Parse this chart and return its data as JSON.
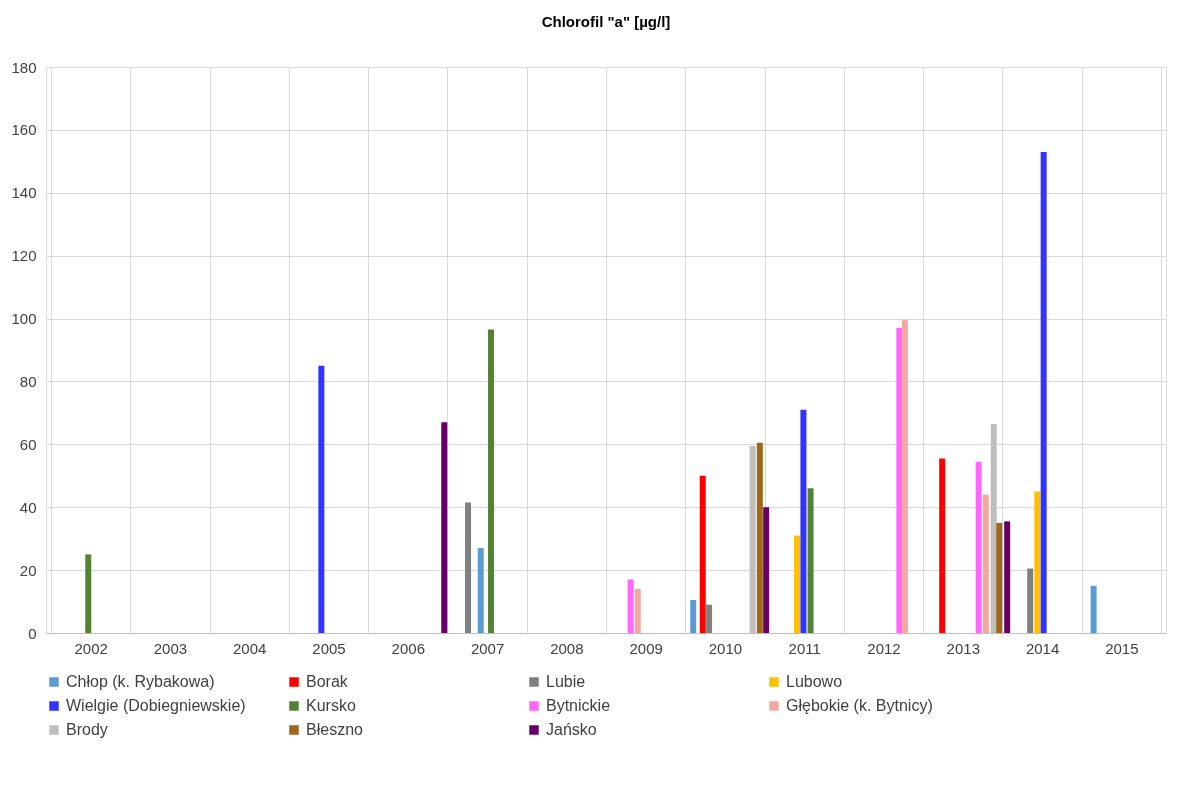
{
  "chart_data": {
    "type": "bar",
    "title": "Chlorofil \"a\" [µg/l]",
    "xlim": [
      2002,
      2016
    ],
    "ylim": [
      0,
      180
    ],
    "xticks": [
      {
        "value": 2002,
        "label": null
      },
      {
        "value": 2002.5,
        "label": "2002"
      },
      {
        "value": 2003,
        "label": null
      },
      {
        "value": 2003.5,
        "label": "2003"
      },
      {
        "value": 2004,
        "label": null
      },
      {
        "value": 2004.5,
        "label": "2004"
      },
      {
        "value": 2005,
        "label": null
      },
      {
        "value": 2005.5,
        "label": "2005"
      },
      {
        "value": 2006,
        "label": null
      },
      {
        "value": 2006.5,
        "label": "2006"
      },
      {
        "value": 2007,
        "label": null
      },
      {
        "value": 2007.5,
        "label": "2007"
      },
      {
        "value": 2008,
        "label": null
      },
      {
        "value": 2008.5,
        "label": "2008"
      },
      {
        "value": 2009,
        "label": null
      },
      {
        "value": 2009.5,
        "label": "2009"
      },
      {
        "value": 2010,
        "label": null
      },
      {
        "value": 2010.5,
        "label": "2010"
      },
      {
        "value": 2011,
        "label": null
      },
      {
        "value": 2011.5,
        "label": "2011"
      },
      {
        "value": 2012,
        "label": null
      },
      {
        "value": 2012.5,
        "label": "2012"
      },
      {
        "value": 2013,
        "label": null
      },
      {
        "value": 2013.5,
        "label": "2013"
      },
      {
        "value": 2014,
        "label": null
      },
      {
        "value": 2014.5,
        "label": "2014"
      },
      {
        "value": 2015,
        "label": null
      },
      {
        "value": 2015.5,
        "label": "2015"
      },
      {
        "value": 2016,
        "label": null
      }
    ],
    "yticks": [
      0,
      20,
      40,
      60,
      80,
      100,
      120,
      140,
      160,
      180
    ],
    "grid": true,
    "legend": "bottom",
    "series": [
      {
        "name": "Chłop (k. Rybakowa)",
        "color": "#5b9bd5",
        "x": [
          2007.42,
          2010.1,
          2015.15
        ],
        "values": [
          27,
          10.5,
          15
        ]
      },
      {
        "name": "Borak",
        "color": "#ff0000",
        "x": [
          2010.22,
          2013.24
        ],
        "values": [
          50,
          55.5
        ]
      },
      {
        "name": "Lubie",
        "color": "#7f7f7f",
        "x": [
          2007.26,
          2010.3,
          2014.35
        ],
        "values": [
          41.5,
          9,
          20.5
        ]
      },
      {
        "name": "Lubowo",
        "color": "#ffc000",
        "x": [
          2011.41,
          2014.44
        ],
        "values": [
          31,
          45
        ]
      },
      {
        "name": "Wielgie (Dobiegniewskie)",
        "color": "#3333ff",
        "x": [
          2005.41,
          2011.49,
          2014.52
        ],
        "values": [
          85,
          71,
          153
        ]
      },
      {
        "name": "Kursko",
        "color": "#548235",
        "x": [
          2002.47,
          2007.55,
          2011.58
        ],
        "values": [
          25,
          96.5,
          46
        ]
      },
      {
        "name": "Bytnickie",
        "color": "#ff66ff",
        "x": [
          2009.31,
          2012.7,
          2013.7
        ],
        "values": [
          17,
          97,
          54.5
        ]
      },
      {
        "name": "Głębokie (k. Bytnicy)",
        "color": "#f4a6a0",
        "x": [
          2009.4,
          2012.77,
          2013.79
        ],
        "values": [
          14,
          99.5,
          44
        ]
      },
      {
        "name": "Brody",
        "color": "#bfbfbf",
        "x": [
          2010.85,
          2013.89
        ],
        "values": [
          59.5,
          66.5
        ]
      },
      {
        "name": "Błeszno",
        "color": "#a0661a",
        "x": [
          2010.94,
          2013.96
        ],
        "values": [
          60.5,
          35
        ]
      },
      {
        "name": "Jańsko",
        "color": "#660066",
        "x": [
          2006.96,
          2011.02,
          2014.06
        ],
        "values": [
          67,
          40,
          35.5
        ]
      }
    ]
  }
}
